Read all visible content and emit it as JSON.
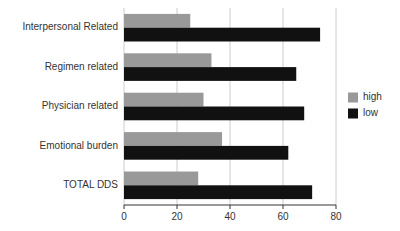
{
  "chart_data": {
    "type": "bar",
    "orientation": "horizontal",
    "categories": [
      "Interpersonal Related",
      "Regimen related",
      "Physician related",
      "Emotional burden",
      "TOTAL DDS"
    ],
    "series": [
      {
        "name": "high",
        "color": "#999999",
        "values": [
          25,
          33,
          30,
          37,
          28
        ]
      },
      {
        "name": "low",
        "color": "#111111",
        "values": [
          74,
          65,
          68,
          62,
          71
        ]
      }
    ],
    "xlim": [
      0,
      80
    ],
    "xticks": [
      0,
      20,
      40,
      60,
      80
    ],
    "grid": true,
    "legend": "right"
  }
}
